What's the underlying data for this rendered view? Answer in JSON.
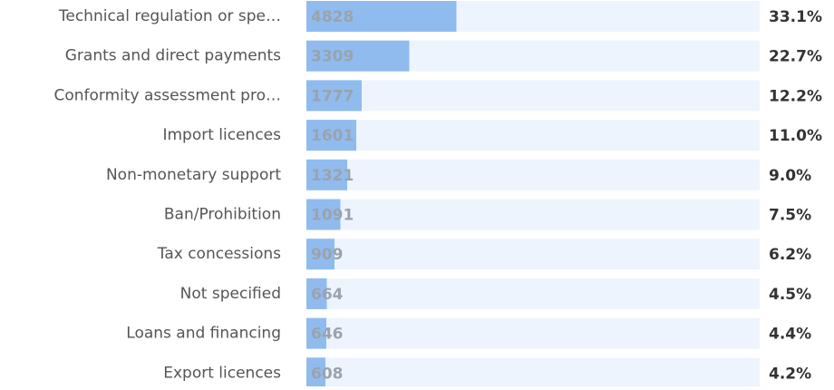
{
  "chart_data": {
    "type": "bar",
    "categories": [
      "Technical regulation or spe…",
      "Grants and direct payments",
      "Conformity assessment pro…",
      "Import licences",
      "Non-monetary support",
      "Ban/Prohibition",
      "Tax concessions",
      "Not specified",
      "Loans and financing",
      "Export licences"
    ],
    "values": [
      4828,
      3309,
      1777,
      1601,
      1321,
      1091,
      909,
      664,
      646,
      608
    ],
    "shares": {
      "values": [
        33.1,
        22.7,
        12.2,
        11.0,
        9.0,
        7.5,
        6.2,
        4.5,
        4.4,
        4.2
      ],
      "value_labels": [
        "33.1%",
        "22.7%",
        "12.2%",
        "11.0%",
        "9.0%",
        "7.5%",
        "6.2%",
        "4.5%",
        "4.4%",
        "4.2%"
      ]
    },
    "xlim": [
      0,
      100
    ],
    "color": "#90bbee",
    "track_color": "#eef4fd"
  }
}
